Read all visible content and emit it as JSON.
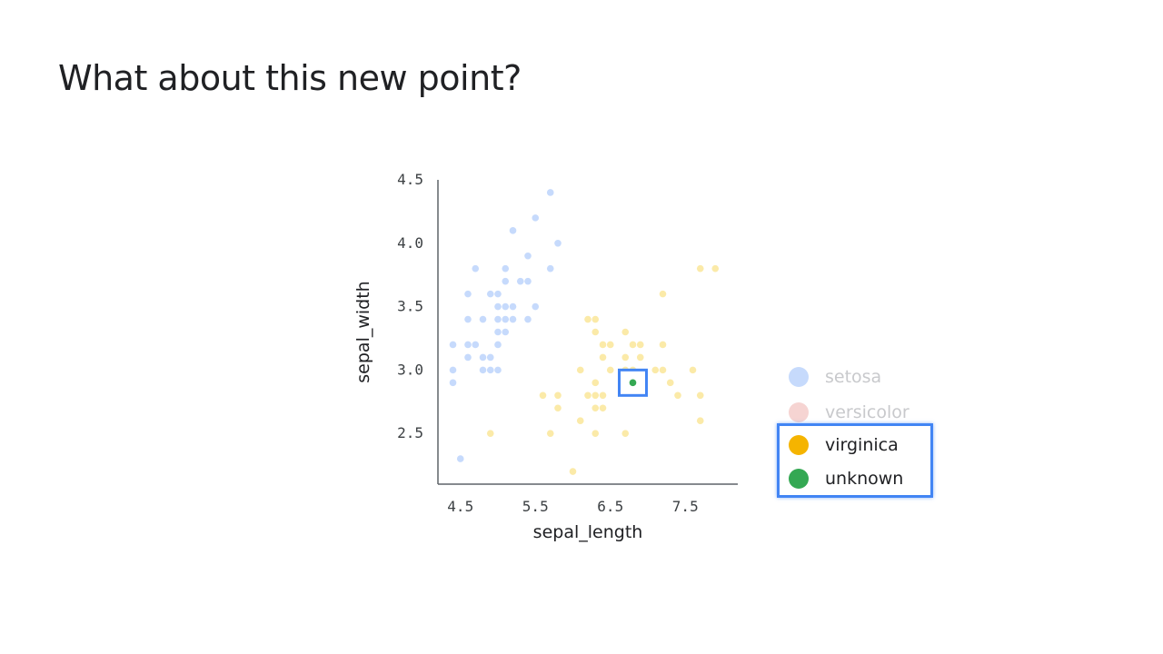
{
  "slide": {
    "title": "What about this new point?"
  },
  "chart_data": {
    "type": "scatter",
    "xlabel": "sepal_length",
    "ylabel": "sepal_width",
    "xlim": [
      4.2,
      8.2
    ],
    "ylim": [
      2.1,
      4.5
    ],
    "xticks": [
      4.5,
      5.5,
      6.5,
      7.5
    ],
    "yticks": [
      2.5,
      3.0,
      3.5,
      4.0,
      4.5
    ],
    "x_tick_labels": [
      "4.5",
      "5.5",
      "6.5",
      "7.5"
    ],
    "y_tick_labels": [
      "2.5",
      "3.0",
      "3.5",
      "4.0",
      "4.5"
    ],
    "grid": false,
    "highlighted_point": {
      "series": "unknown",
      "x": 6.8,
      "y": 2.9
    },
    "series": [
      {
        "name": "setosa",
        "color": "#c6dafc",
        "faded": true,
        "points": [
          [
            4.4,
            2.9
          ],
          [
            4.4,
            3.0
          ],
          [
            4.4,
            3.2
          ],
          [
            4.5,
            2.3
          ],
          [
            4.6,
            3.1
          ],
          [
            4.6,
            3.4
          ],
          [
            4.6,
            3.6
          ],
          [
            4.6,
            3.2
          ],
          [
            4.7,
            3.2
          ],
          [
            4.7,
            3.8
          ],
          [
            4.8,
            3.0
          ],
          [
            4.8,
            3.4
          ],
          [
            4.8,
            3.1
          ],
          [
            4.9,
            3.0
          ],
          [
            4.9,
            3.1
          ],
          [
            4.9,
            3.6
          ],
          [
            5.0,
            3.6
          ],
          [
            5.0,
            3.4
          ],
          [
            5.0,
            3.0
          ],
          [
            5.0,
            3.2
          ],
          [
            5.0,
            3.3
          ],
          [
            5.0,
            3.5
          ],
          [
            5.1,
            3.5
          ],
          [
            5.1,
            3.8
          ],
          [
            5.1,
            3.3
          ],
          [
            5.1,
            3.4
          ],
          [
            5.1,
            3.7
          ],
          [
            5.2,
            3.5
          ],
          [
            5.2,
            3.4
          ],
          [
            5.2,
            4.1
          ],
          [
            5.3,
            3.7
          ],
          [
            5.4,
            3.9
          ],
          [
            5.4,
            3.4
          ],
          [
            5.4,
            3.7
          ],
          [
            5.5,
            4.2
          ],
          [
            5.5,
            3.5
          ],
          [
            5.7,
            4.4
          ],
          [
            5.7,
            3.8
          ],
          [
            5.8,
            4.0
          ]
        ]
      },
      {
        "name": "versicolor",
        "color": "#f6d4d2",
        "faded": true,
        "points": []
      },
      {
        "name": "virginica",
        "color": "#fbeaa8",
        "faded": false,
        "points": [
          [
            4.9,
            2.5
          ],
          [
            5.6,
            2.8
          ],
          [
            5.7,
            2.5
          ],
          [
            5.8,
            2.8
          ],
          [
            5.8,
            2.7
          ],
          [
            6.0,
            2.2
          ],
          [
            6.1,
            3.0
          ],
          [
            6.1,
            2.6
          ],
          [
            6.2,
            3.4
          ],
          [
            6.2,
            2.8
          ],
          [
            6.3,
            3.3
          ],
          [
            6.3,
            2.9
          ],
          [
            6.3,
            3.4
          ],
          [
            6.3,
            2.5
          ],
          [
            6.3,
            2.8
          ],
          [
            6.3,
            2.7
          ],
          [
            6.4,
            3.2
          ],
          [
            6.4,
            2.8
          ],
          [
            6.4,
            3.1
          ],
          [
            6.4,
            2.7
          ],
          [
            6.5,
            3.0
          ],
          [
            6.5,
            3.2
          ],
          [
            6.7,
            3.3
          ],
          [
            6.7,
            3.1
          ],
          [
            6.7,
            3.0
          ],
          [
            6.7,
            2.5
          ],
          [
            6.8,
            3.2
          ],
          [
            6.8,
            3.0
          ],
          [
            6.9,
            3.2
          ],
          [
            6.9,
            3.1
          ],
          [
            7.1,
            3.0
          ],
          [
            7.2,
            3.6
          ],
          [
            7.2,
            3.2
          ],
          [
            7.2,
            3.0
          ],
          [
            7.3,
            2.9
          ],
          [
            7.4,
            2.8
          ],
          [
            7.6,
            3.0
          ],
          [
            7.7,
            3.8
          ],
          [
            7.7,
            2.6
          ],
          [
            7.7,
            2.8
          ],
          [
            7.9,
            3.8
          ]
        ]
      },
      {
        "name": "unknown",
        "color": "#34a853",
        "faded": false,
        "points": [
          [
            6.8,
            2.9
          ]
        ]
      }
    ]
  },
  "legend": {
    "items": [
      {
        "label": "setosa",
        "color": "#c6dafc",
        "text_color": "#c8c9cc"
      },
      {
        "label": "versicolor",
        "color": "#f6d4d2",
        "text_color": "#c8c9cc"
      },
      {
        "label": "virginica",
        "color": "#f5b400",
        "text_color": "#202124"
      },
      {
        "label": "unknown",
        "color": "#34a853",
        "text_color": "#202124"
      }
    ],
    "highlighted": [
      "virginica",
      "unknown"
    ],
    "highlight_color": "#4285f4"
  }
}
